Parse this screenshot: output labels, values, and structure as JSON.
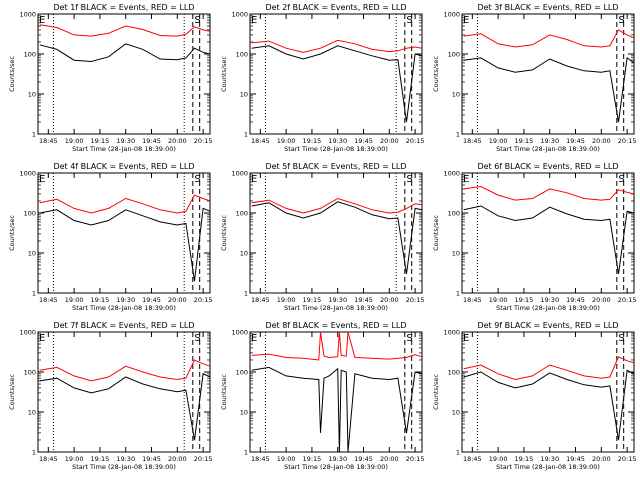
{
  "chart_data": [
    {
      "type": "line",
      "title": "Det 1f BLACK = Events, RED = LLD",
      "xlabel": "Start Time (28-Jan-08 18:39:00)",
      "ylabel": "Counts/sec",
      "yscale": "log",
      "ylim": [
        1,
        1000
      ],
      "xlim": [
        "18:39",
        "20:19"
      ],
      "xticks": [
        "18:45",
        "19:00",
        "19:15",
        "19:30",
        "19:45",
        "20:00",
        "20:15"
      ],
      "yticks": [
        "1",
        "10",
        "100",
        "1000"
      ],
      "markers": {
        "E": "18:39",
        "S": "20:13"
      },
      "vlines": {
        "dotted": [
          "18:48",
          "20:04"
        ],
        "dashed": [
          "20:09",
          "20:13"
        ]
      },
      "series": [
        {
          "color": "#ff0000",
          "x": [
            "18:40",
            "18:50",
            "19:00",
            "19:10",
            "19:20",
            "19:30",
            "19:40",
            "19:50",
            "20:00",
            "20:05",
            "20:10",
            "20:15",
            "20:19"
          ],
          "values": [
            540,
            460,
            300,
            280,
            330,
            500,
            410,
            290,
            280,
            310,
            480,
            400,
            370
          ]
        },
        {
          "color": "#000000",
          "x": [
            "18:40",
            "18:50",
            "19:00",
            "19:10",
            "19:20",
            "19:30",
            "19:40",
            "19:50",
            "20:00",
            "20:05",
            "20:10",
            "20:15",
            "20:19"
          ],
          "values": [
            170,
            130,
            70,
            65,
            85,
            180,
            130,
            75,
            72,
            80,
            140,
            110,
            100
          ]
        }
      ]
    },
    {
      "type": "line",
      "title": "Det 2f BLACK = Events, RED = LLD",
      "xlabel": "Start Time (28-Jan-08 18:39:00)",
      "ylabel": "Counts/sec",
      "yscale": "log",
      "ylim": [
        1,
        1000
      ],
      "xlim": [
        "18:39",
        "20:19"
      ],
      "xticks": [
        "18:45",
        "19:00",
        "19:15",
        "19:30",
        "19:45",
        "20:00",
        "20:15"
      ],
      "yticks": [
        "1",
        "10",
        "100",
        "1000"
      ],
      "markers": {
        "E": "18:39",
        "S": "20:13"
      },
      "vlines": {
        "dotted": [
          "18:48",
          "20:04"
        ],
        "dashed": [
          "20:09",
          "20:13"
        ]
      },
      "series": [
        {
          "color": "#ff0000",
          "x": [
            "18:40",
            "18:50",
            "19:00",
            "19:10",
            "19:20",
            "19:30",
            "19:40",
            "19:50",
            "20:00",
            "20:05",
            "20:10",
            "20:15",
            "20:19"
          ],
          "values": [
            190,
            210,
            140,
            110,
            140,
            220,
            180,
            130,
            115,
            120,
            140,
            150,
            140
          ]
        },
        {
          "color": "#000000",
          "x": [
            "18:40",
            "18:50",
            "19:00",
            "19:10",
            "19:20",
            "19:30",
            "19:40",
            "19:50",
            "20:00",
            "20:05",
            "20:10",
            "20:15",
            "20:19"
          ],
          "values": [
            140,
            160,
            100,
            75,
            100,
            160,
            120,
            90,
            70,
            72,
            2,
            100,
            90
          ]
        }
      ]
    },
    {
      "type": "line",
      "title": "Det 3f BLACK = Events, RED = LLD",
      "xlabel": "Start Time (28-Jan-08 18:39:00)",
      "ylabel": "Counts/sec",
      "yscale": "log",
      "ylim": [
        1,
        1000
      ],
      "xlim": [
        "18:39",
        "20:19"
      ],
      "xticks": [
        "18:45",
        "19:00",
        "19:15",
        "19:30",
        "19:45",
        "20:00",
        "20:15"
      ],
      "yticks": [
        "1",
        "10",
        "100",
        "1000"
      ],
      "markers": {
        "E": "18:39",
        "S": "20:13"
      },
      "vlines": {
        "dotted": [
          "18:48"
        ],
        "dashed": [
          "20:09",
          "20:13"
        ]
      },
      "series": [
        {
          "color": "#ff0000",
          "x": [
            "18:40",
            "18:50",
            "19:00",
            "19:10",
            "19:20",
            "19:30",
            "19:40",
            "19:50",
            "20:00",
            "20:05",
            "20:10",
            "20:15",
            "20:19"
          ],
          "values": [
            280,
            320,
            180,
            150,
            170,
            300,
            230,
            160,
            150,
            160,
            400,
            300,
            250
          ]
        },
        {
          "color": "#000000",
          "x": [
            "18:40",
            "18:50",
            "19:00",
            "19:10",
            "19:20",
            "19:30",
            "19:40",
            "19:50",
            "20:00",
            "20:05",
            "20:10",
            "20:15",
            "20:19"
          ],
          "values": [
            70,
            80,
            45,
            35,
            40,
            75,
            50,
            38,
            35,
            38,
            2,
            80,
            60
          ]
        }
      ]
    },
    {
      "type": "line",
      "title": "Det 4f BLACK = Events, RED = LLD",
      "xlabel": "Start Time (28-Jan-08 18:39:00)",
      "ylabel": "Counts/sec",
      "yscale": "log",
      "ylim": [
        1,
        1000
      ],
      "xlim": [
        "18:39",
        "20:19"
      ],
      "xticks": [
        "18:45",
        "19:00",
        "19:15",
        "19:30",
        "19:45",
        "20:00",
        "20:15"
      ],
      "yticks": [
        "1",
        "10",
        "100",
        "1000"
      ],
      "markers": {
        "E": "18:39",
        "S": "20:13"
      },
      "vlines": {
        "dotted": [
          "18:48",
          "20:04"
        ],
        "dashed": [
          "20:09",
          "20:13"
        ]
      },
      "series": [
        {
          "color": "#ff0000",
          "x": [
            "18:40",
            "18:50",
            "19:00",
            "19:10",
            "19:20",
            "19:30",
            "19:40",
            "19:50",
            "20:00",
            "20:05",
            "20:10",
            "20:15",
            "20:19"
          ],
          "values": [
            180,
            220,
            130,
            100,
            130,
            230,
            170,
            120,
            100,
            110,
            280,
            230,
            200
          ]
        },
        {
          "color": "#000000",
          "x": [
            "18:40",
            "18:50",
            "19:00",
            "19:10",
            "19:20",
            "19:30",
            "19:40",
            "19:50",
            "20:00",
            "20:05",
            "20:10",
            "20:15",
            "20:19"
          ],
          "values": [
            100,
            120,
            65,
            50,
            65,
            120,
            85,
            60,
            50,
            55,
            2,
            130,
            110
          ]
        }
      ]
    },
    {
      "type": "line",
      "title": "Det 5f BLACK = Events, RED = LLD",
      "xlabel": "Start Time (28-Jan-08 18:39:00)",
      "ylabel": "Counts/sec",
      "yscale": "log",
      "ylim": [
        1,
        1000
      ],
      "xlim": [
        "18:39",
        "20:19"
      ],
      "xticks": [
        "18:45",
        "19:00",
        "19:15",
        "19:30",
        "19:45",
        "20:00",
        "20:15"
      ],
      "yticks": [
        "1",
        "10",
        "100",
        "1000"
      ],
      "markers": {
        "E": "18:39",
        "S": "20:13"
      },
      "vlines": {
        "dotted": [
          "18:48",
          "20:04"
        ],
        "dashed": [
          "20:09",
          "20:13"
        ]
      },
      "series": [
        {
          "color": "#ff0000",
          "x": [
            "18:40",
            "18:50",
            "19:00",
            "19:10",
            "19:20",
            "19:30",
            "19:40",
            "19:50",
            "20:00",
            "20:05",
            "20:10",
            "20:15",
            "20:19"
          ],
          "values": [
            180,
            210,
            130,
            100,
            130,
            230,
            170,
            120,
            100,
            105,
            130,
            170,
            160
          ]
        },
        {
          "color": "#000000",
          "x": [
            "18:40",
            "18:50",
            "19:00",
            "19:10",
            "19:20",
            "19:30",
            "19:40",
            "19:50",
            "20:00",
            "20:05",
            "20:10",
            "20:15",
            "20:19"
          ],
          "values": [
            150,
            180,
            100,
            75,
            100,
            190,
            140,
            90,
            72,
            75,
            3,
            130,
            120
          ]
        }
      ]
    },
    {
      "type": "line",
      "title": "Det 6f BLACK = Events, RED = LLD",
      "xlabel": "Start Time (28-Jan-08 18:39:00)",
      "ylabel": "Counts/sec",
      "yscale": "log",
      "ylim": [
        1,
        1000
      ],
      "xlim": [
        "18:39",
        "20:19"
      ],
      "xticks": [
        "18:45",
        "19:00",
        "19:15",
        "19:30",
        "19:45",
        "20:00",
        "20:15"
      ],
      "yticks": [
        "1",
        "10",
        "100",
        "1000"
      ],
      "markers": {
        "E": "18:39",
        "S": "20:13"
      },
      "vlines": {
        "dotted": [
          "18:48"
        ],
        "dashed": [
          "20:09",
          "20:13"
        ]
      },
      "series": [
        {
          "color": "#ff0000",
          "x": [
            "18:40",
            "18:50",
            "19:00",
            "19:10",
            "19:20",
            "19:30",
            "19:40",
            "19:50",
            "20:00",
            "20:05",
            "20:10",
            "20:15",
            "20:19"
          ],
          "values": [
            400,
            460,
            280,
            210,
            230,
            400,
            320,
            230,
            210,
            220,
            380,
            330,
            300
          ]
        },
        {
          "color": "#000000",
          "x": [
            "18:40",
            "18:50",
            "19:00",
            "19:10",
            "19:20",
            "19:30",
            "19:40",
            "19:50",
            "20:00",
            "20:05",
            "20:10",
            "20:15",
            "20:19"
          ],
          "values": [
            120,
            150,
            85,
            65,
            75,
            140,
            95,
            70,
            65,
            70,
            3,
            110,
            100
          ]
        }
      ]
    },
    {
      "type": "line",
      "title": "Det 7f BLACK = Events, RED = LLD",
      "xlabel": "Start Time (28-Jan-08 18:39:00)",
      "ylabel": "Counts/sec",
      "yscale": "log",
      "ylim": [
        1,
        1000
      ],
      "xlim": [
        "18:39",
        "20:19"
      ],
      "xticks": [
        "18:45",
        "19:00",
        "19:15",
        "19:30",
        "19:45",
        "20:00",
        "20:15"
      ],
      "yticks": [
        "1",
        "10",
        "100",
        "1000"
      ],
      "markers": {
        "E": "18:39",
        "S": "20:13"
      },
      "vlines": {
        "dotted": [
          "18:48",
          "20:04"
        ],
        "dashed": [
          "20:09",
          "20:13"
        ]
      },
      "series": [
        {
          "color": "#ff0000",
          "x": [
            "18:40",
            "18:50",
            "19:00",
            "19:10",
            "19:20",
            "19:30",
            "19:40",
            "19:50",
            "20:00",
            "20:05",
            "20:10",
            "20:15",
            "20:19"
          ],
          "values": [
            110,
            130,
            80,
            60,
            75,
            140,
            100,
            75,
            65,
            70,
            200,
            160,
            140
          ]
        },
        {
          "color": "#000000",
          "x": [
            "18:40",
            "18:50",
            "19:00",
            "19:10",
            "19:20",
            "19:30",
            "19:40",
            "19:50",
            "20:00",
            "20:05",
            "20:10",
            "20:15",
            "20:19"
          ],
          "values": [
            60,
            70,
            40,
            30,
            38,
            75,
            50,
            38,
            32,
            35,
            2,
            90,
            75
          ]
        }
      ]
    },
    {
      "type": "line",
      "title": "Det 8f BLACK = Events, RED = LLD",
      "xlabel": "Start Time (28-Jan-08 18:39:00)",
      "ylabel": "Counts/sec",
      "yscale": "log",
      "ylim": [
        1,
        1000
      ],
      "xlim": [
        "18:39",
        "20:19"
      ],
      "xticks": [
        "18:45",
        "19:00",
        "19:15",
        "19:30",
        "19:45",
        "20:00",
        "20:15"
      ],
      "yticks": [
        "1",
        "10",
        "100",
        "1000"
      ],
      "markers": {
        "E": "18:39",
        "S": "20:13"
      },
      "vlines": {
        "dotted": [
          "18:48"
        ],
        "dashed": [
          "20:09",
          "20:13"
        ]
      },
      "series": [
        {
          "color": "#ff0000",
          "x": [
            "18:40",
            "18:50",
            "19:00",
            "19:10",
            "19:19",
            "19:20",
            "19:22",
            "19:25",
            "19:30",
            "19:31",
            "19:32",
            "19:35",
            "19:36",
            "19:40",
            "19:50",
            "20:00",
            "20:05",
            "20:10",
            "20:15",
            "20:19"
          ],
          "values": [
            260,
            280,
            230,
            220,
            200,
            1000,
            250,
            230,
            240,
            1000,
            260,
            250,
            1000,
            230,
            220,
            210,
            220,
            230,
            270,
            240
          ]
        },
        {
          "color": "#000000",
          "x": [
            "18:40",
            "18:50",
            "19:00",
            "19:10",
            "19:19",
            "19:20",
            "19:22",
            "19:25",
            "19:30",
            "19:31",
            "19:32",
            "19:35",
            "19:36",
            "19:40",
            "19:50",
            "20:00",
            "20:05",
            "20:10",
            "20:15",
            "20:19"
          ],
          "values": [
            110,
            130,
            80,
            70,
            65,
            3,
            70,
            80,
            120,
            1,
            110,
            100,
            1,
            90,
            70,
            65,
            70,
            3,
            100,
            90
          ]
        }
      ]
    },
    {
      "type": "line",
      "title": "Det 9f BLACK = Events, RED = LLD",
      "xlabel": "Start Time (28-Jan-08 18:39:00)",
      "ylabel": "Counts/sec",
      "yscale": "log",
      "ylim": [
        1,
        1000
      ],
      "xlim": [
        "18:39",
        "20:19"
      ],
      "xticks": [
        "18:45",
        "19:00",
        "19:15",
        "19:30",
        "19:45",
        "20:00",
        "20:15"
      ],
      "yticks": [
        "1",
        "10",
        "100",
        "1000"
      ],
      "markers": {
        "E": "18:39",
        "S": "20:13"
      },
      "vlines": {
        "dotted": [
          "18:48"
        ],
        "dashed": [
          "20:09",
          "20:13"
        ]
      },
      "series": [
        {
          "color": "#ff0000",
          "x": [
            "18:40",
            "18:50",
            "19:00",
            "19:10",
            "19:20",
            "19:30",
            "19:40",
            "19:50",
            "20:00",
            "20:05",
            "20:10",
            "20:15",
            "20:19"
          ],
          "values": [
            120,
            150,
            90,
            65,
            80,
            150,
            110,
            80,
            70,
            75,
            240,
            190,
            170
          ]
        },
        {
          "color": "#000000",
          "x": [
            "18:40",
            "18:50",
            "19:00",
            "19:10",
            "19:20",
            "19:30",
            "19:40",
            "19:50",
            "20:00",
            "20:05",
            "20:10",
            "20:15",
            "20:19"
          ],
          "values": [
            75,
            100,
            55,
            40,
            50,
            95,
            65,
            48,
            42,
            45,
            2,
            110,
            90
          ]
        }
      ]
    }
  ]
}
